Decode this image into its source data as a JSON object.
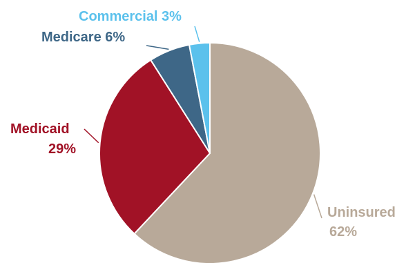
{
  "chart_data": {
    "type": "pie",
    "categories": [
      "Uninsured",
      "Medicaid",
      "Medicare",
      "Commercial"
    ],
    "values": [
      62,
      29,
      6,
      3
    ],
    "value_labels": [
      "62%",
      "29%",
      "6%",
      "3%"
    ],
    "colors": [
      "#B8A999",
      "#A11226",
      "#3E6787",
      "#5BC1EC"
    ],
    "label_colors": [
      "#B8A999",
      "#A11226",
      "#3E6787",
      "#5BC1EC"
    ],
    "start": "12 o'clock",
    "direction": "clockwise",
    "legend": "none"
  }
}
